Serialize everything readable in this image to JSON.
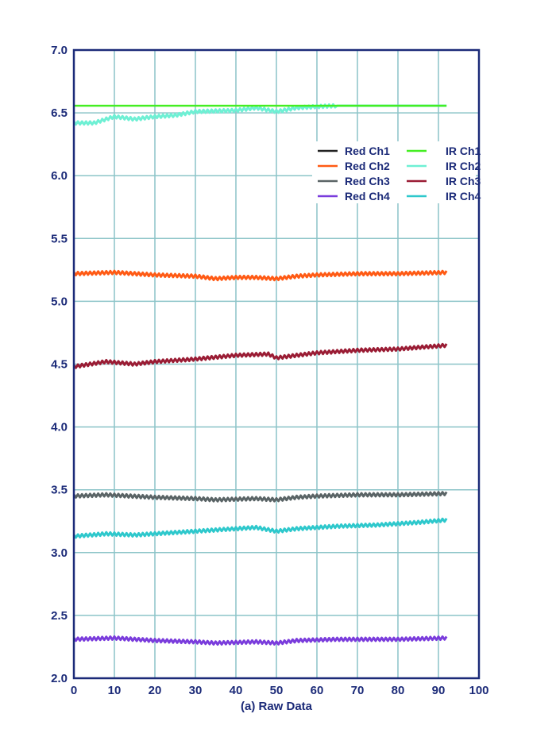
{
  "chart_data": {
    "type": "line",
    "title": "(a) Raw Data",
    "xlabel": "(a) Raw Data",
    "ylabel": "",
    "xlim": [
      0,
      100
    ],
    "ylim": [
      2.0,
      7.0
    ],
    "xticks": [
      "0",
      "10",
      "20",
      "30",
      "40",
      "50",
      "60",
      "70",
      "80",
      "90",
      "100"
    ],
    "yticks": [
      "2.0",
      "2.5",
      "3.0",
      "3.5",
      "4.0",
      "4.5",
      "5.0",
      "5.5",
      "6.0",
      "6.5",
      "7.0"
    ],
    "grid": true,
    "legend_position": "top-right",
    "series": [
      {
        "name": "Red Ch1",
        "color": "#222222",
        "x": [],
        "y": []
      },
      {
        "name": "Red Ch2",
        "color": "#ff5a14",
        "x": [
          0,
          10,
          20,
          30,
          35,
          40,
          45,
          50,
          55,
          60,
          70,
          80,
          92
        ],
        "y": [
          5.22,
          5.23,
          5.21,
          5.2,
          5.18,
          5.19,
          5.19,
          5.18,
          5.2,
          5.21,
          5.22,
          5.22,
          5.23
        ]
      },
      {
        "name": "Red Ch3",
        "color": "#5a6466",
        "x": [
          0,
          8,
          20,
          30,
          35,
          45,
          50,
          55,
          60,
          70,
          80,
          92
        ],
        "y": [
          3.45,
          3.46,
          3.44,
          3.43,
          3.42,
          3.43,
          3.42,
          3.44,
          3.45,
          3.46,
          3.46,
          3.47
        ]
      },
      {
        "name": "Red Ch4",
        "color": "#7a3cdc",
        "x": [
          0,
          10,
          20,
          30,
          35,
          45,
          50,
          55,
          65,
          80,
          92
        ],
        "y": [
          2.31,
          2.32,
          2.3,
          2.29,
          2.28,
          2.29,
          2.28,
          2.3,
          2.31,
          2.31,
          2.32
        ]
      },
      {
        "name": "IR Ch1",
        "color": "#44ee22",
        "x": [
          0,
          92
        ],
        "y": [
          6.557,
          6.557
        ]
      },
      {
        "name": "IR Ch2",
        "color": "#6ef0d4",
        "x": [
          0,
          5,
          10,
          15,
          20,
          25,
          30,
          40,
          45,
          50,
          55,
          60,
          65,
          92
        ],
        "y": [
          6.42,
          6.42,
          6.47,
          6.45,
          6.47,
          6.48,
          6.51,
          6.52,
          6.54,
          6.51,
          6.54,
          6.55,
          6.557,
          6.557
        ]
      },
      {
        "name": "IR Ch3",
        "color": "#9a1c34",
        "x": [
          0,
          8,
          15,
          20,
          30,
          40,
          48,
          50,
          55,
          60,
          70,
          80,
          92
        ],
        "y": [
          4.48,
          4.52,
          4.5,
          4.52,
          4.54,
          4.57,
          4.58,
          4.55,
          4.57,
          4.59,
          4.61,
          4.62,
          4.65
        ]
      },
      {
        "name": "IR Ch4",
        "color": "#2ec8cc",
        "x": [
          0,
          8,
          15,
          25,
          35,
          45,
          50,
          55,
          65,
          75,
          85,
          92
        ],
        "y": [
          3.13,
          3.15,
          3.14,
          3.16,
          3.18,
          3.2,
          3.17,
          3.19,
          3.21,
          3.22,
          3.24,
          3.26
        ]
      }
    ]
  }
}
